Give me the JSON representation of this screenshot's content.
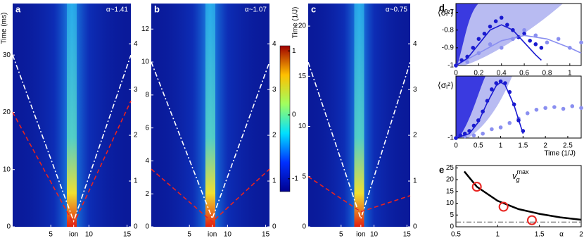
{
  "chart_data": [
    {
      "type": "heatmap",
      "label": "a",
      "annotation": "α~1.41",
      "ylabel": "Time (ms)",
      "xlim": [
        0,
        15.5
      ],
      "xticks": [
        5,
        {
          "value": 8,
          "label": "ion"
        },
        10,
        15
      ],
      "ylim": [
        0,
        39
      ],
      "yticks": [
        0,
        10,
        20,
        30
      ],
      "y2lim": [
        0,
        4.88
      ],
      "y2ticks": [
        0,
        1,
        2,
        3,
        4
      ],
      "series": [
        {
          "color": "#ffffff",
          "style": "dashdot",
          "x": [
            0,
            8,
            15.5
          ],
          "values": [
            30,
            1,
            30
          ]
        },
        {
          "color": "#e8231f",
          "style": "dashed",
          "x": [
            0,
            8,
            15.5
          ],
          "values": [
            20,
            0.5,
            22
          ]
        }
      ]
    },
    {
      "type": "heatmap",
      "label": "b",
      "annotation": "α~1.07",
      "y2label": "Time (1/J)",
      "xlim": [
        0,
        15.5
      ],
      "xticks": [
        5,
        {
          "value": 8,
          "label": "ion"
        },
        10,
        15
      ],
      "ylim": [
        0,
        13.55
      ],
      "yticks": [
        0,
        2,
        4,
        6,
        8,
        10,
        12
      ],
      "y2lim": [
        0,
        4.88
      ],
      "y2ticks": [
        0,
        1,
        2,
        3,
        4
      ],
      "series": [
        {
          "color": "#ffffff",
          "style": "dashdot",
          "x": [
            0,
            8,
            15.5
          ],
          "values": [
            10,
            0.5,
            10
          ]
        },
        {
          "color": "#e8231f",
          "style": "dashed",
          "x": [
            0,
            8,
            15.5
          ],
          "values": [
            3.5,
            0.3,
            3.5
          ]
        }
      ]
    },
    {
      "type": "colorbar",
      "ylim": [
        -1.2,
        1.08
      ],
      "yticks": [
        -1,
        0,
        1
      ]
    },
    {
      "type": "heatmap",
      "label": "c",
      "annotation": "α~0.75",
      "xlim": [
        0,
        15.5
      ],
      "xticks": [
        5,
        {
          "value": 8,
          "label": "ion"
        },
        10,
        15
      ],
      "ylim": [
        0,
        22.25
      ],
      "yticks": [
        0,
        5,
        10,
        15,
        20
      ],
      "y2lim": [
        0,
        4.88
      ],
      "y2ticks": [
        0,
        1,
        2,
        3,
        4
      ],
      "series": [
        {
          "color": "#ffffff",
          "style": "dashdot",
          "x": [
            0,
            8,
            15.5
          ],
          "values": [
            16.4,
            0.8,
            16.4
          ]
        },
        {
          "color": "#e8231f",
          "style": "dashed",
          "x": [
            0,
            8,
            15.5
          ],
          "values": [
            5,
            1.5,
            3.1
          ]
        }
      ]
    },
    {
      "type": "scatter",
      "label": "d",
      "ylabel": "⟨σᵢᶻ⟩",
      "xlim": [
        0,
        1.1
      ],
      "xticks": [
        0,
        0.2,
        0.4,
        0.6,
        0.8,
        1
      ],
      "ylim": [
        -1,
        -0.65
      ],
      "yticks": [
        -1,
        -0.9,
        -0.8,
        -0.7
      ],
      "series": [
        {
          "color": "#8a8ff0",
          "mode": "markers",
          "x": [
            0,
            0.1,
            0.2,
            0.3,
            0.4,
            0.5,
            0.6,
            0.7,
            0.8,
            0.9,
            1.0,
            1.1
          ],
          "values": [
            -1,
            -0.98,
            -0.93,
            -0.88,
            -0.9,
            -0.85,
            -0.8,
            -0.83,
            -0.87,
            -0.85,
            -0.9,
            -0.87
          ]
        },
        {
          "color": "#1a1ad0",
          "mode": "markers",
          "x": [
            0,
            0.05,
            0.1,
            0.15,
            0.2,
            0.25,
            0.3,
            0.35,
            0.4,
            0.45,
            0.5,
            0.55,
            0.6,
            0.65,
            0.7,
            0.75
          ],
          "values": [
            -1,
            -0.97,
            -0.95,
            -0.9,
            -0.85,
            -0.82,
            -0.78,
            -0.75,
            -0.73,
            -0.77,
            -0.8,
            -0.84,
            -0.82,
            -0.86,
            -0.88,
            -0.9
          ]
        },
        {
          "color": "#8a8ff0",
          "mode": "line",
          "x": [
            0,
            0.2,
            0.4,
            0.6,
            0.8,
            1.0,
            1.1
          ],
          "values": [
            -1,
            -0.93,
            -0.86,
            -0.83,
            -0.85,
            -0.9,
            -0.93
          ]
        },
        {
          "color": "#1a1ad0",
          "mode": "line",
          "x": [
            0,
            0.1,
            0.2,
            0.3,
            0.4,
            0.5,
            0.6,
            0.7,
            0.75
          ],
          "values": [
            -1,
            -0.96,
            -0.88,
            -0.8,
            -0.77,
            -0.8,
            -0.87,
            -0.94,
            -0.97
          ]
        }
      ]
    },
    {
      "type": "scatter",
      "ylabel": "⟨σᵢᶻ⟩",
      "xlabel": "Time (1/J)",
      "xlim": [
        0,
        2.8
      ],
      "xticks": [
        0,
        0.5,
        1,
        1.5,
        2,
        2.5
      ],
      "ylim": [
        -1,
        -0.3
      ],
      "yticks": [
        -1
      ],
      "series": [
        {
          "color": "#8a8ff0",
          "mode": "markers",
          "x": [
            0,
            0.2,
            0.4,
            0.6,
            0.8,
            1.0,
            1.2,
            1.4,
            1.6,
            1.8,
            2.0,
            2.2,
            2.4,
            2.6,
            2.8
          ],
          "values": [
            -1,
            -0.98,
            -0.97,
            -0.95,
            -0.9,
            -0.88,
            -0.83,
            -0.78,
            -0.72,
            -0.68,
            -0.66,
            -0.65,
            -0.67,
            -0.64,
            -0.66
          ]
        },
        {
          "color": "#1a1ad0",
          "mode": "markers",
          "x": [
            0,
            0.1,
            0.2,
            0.3,
            0.4,
            0.5,
            0.6,
            0.7,
            0.8,
            0.9,
            1.0,
            1.1,
            1.2,
            1.3,
            1.4,
            1.5
          ],
          "values": [
            -1,
            -0.97,
            -0.95,
            -0.92,
            -0.86,
            -0.8,
            -0.7,
            -0.58,
            -0.45,
            -0.38,
            -0.36,
            -0.38,
            -0.48,
            -0.62,
            -0.8,
            -0.92
          ]
        },
        {
          "color": "#1a1ad0",
          "mode": "line",
          "x": [
            0,
            0.3,
            0.5,
            0.7,
            0.9,
            1.0,
            1.1,
            1.3,
            1.5
          ],
          "values": [
            -1,
            -0.95,
            -0.82,
            -0.6,
            -0.41,
            -0.37,
            -0.4,
            -0.63,
            -0.95
          ]
        }
      ]
    },
    {
      "type": "line",
      "label": "e",
      "annotation": {
        "base": "v",
        "sub": "g",
        "sup": "max"
      },
      "xlabel": "α",
      "xlim": [
        0.5,
        2
      ],
      "xticks": [
        0.5,
        1,
        1.5,
        2
      ],
      "ylim": [
        0,
        26
      ],
      "yticks": [
        0,
        5,
        10,
        15,
        20,
        25
      ],
      "series": [
        {
          "color": "#000000",
          "mode": "line",
          "width": 2.5,
          "x": [
            0.6,
            0.75,
            1,
            1.25,
            1.5,
            1.75,
            2
          ],
          "values": [
            23.5,
            17,
            11,
            7.5,
            5.5,
            4,
            3
          ]
        },
        {
          "color": "#555555",
          "mode": "line",
          "style": "dashdot",
          "width": 1,
          "x": [
            0.5,
            2
          ],
          "values": [
            2,
            2
          ]
        },
        {
          "color": "#e8231f",
          "mode": "markers",
          "marker": "open",
          "x": [
            0.75,
            1.07,
            1.41
          ],
          "values": [
            17,
            8.5,
            2.8
          ]
        }
      ]
    }
  ]
}
